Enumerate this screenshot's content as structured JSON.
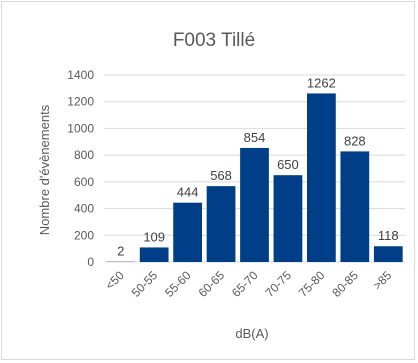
{
  "chart_data": {
    "type": "bar",
    "title": "F003 Tillé",
    "xlabel": "dB(A)",
    "ylabel": "Nombre d'évènements",
    "categories": [
      "<50",
      "50-55",
      "55-60",
      "60-65",
      "65-70",
      "70-75",
      "75-80",
      "80-85",
      ">85"
    ],
    "values": [
      2,
      109,
      444,
      568,
      854,
      650,
      1262,
      828,
      118
    ],
    "data_labels": [
      "2",
      "109",
      "444",
      "568",
      "854",
      "650",
      "1262",
      "828",
      "118"
    ],
    "ylim": [
      0,
      1400
    ],
    "yticks": [
      "0",
      "200",
      "400",
      "600",
      "800",
      "1000",
      "1200",
      "1400"
    ],
    "grid": true,
    "legend": "none",
    "colors": {
      "bar": "#003f87",
      "grid": "#d9d9d9",
      "text": "#595959"
    }
  }
}
